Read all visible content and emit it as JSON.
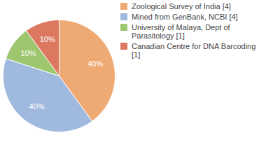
{
  "chart_data": {
    "type": "pie",
    "categories": [
      "Zoological Survey of India [4]",
      "Mined from GenBank, NCBI [4]",
      "University of Malaya, Dept of Parasitology [1]",
      "Canadian Centre for DNA Barcoding [1]"
    ],
    "values": [
      40,
      40,
      10,
      10
    ],
    "value_labels": [
      "40%",
      "40%",
      "10%",
      "10%"
    ],
    "colors": [
      "#efaa74",
      "#9fb9df",
      "#9dc66f",
      "#dc7860"
    ],
    "data_labels": true,
    "legend": "top-right"
  }
}
